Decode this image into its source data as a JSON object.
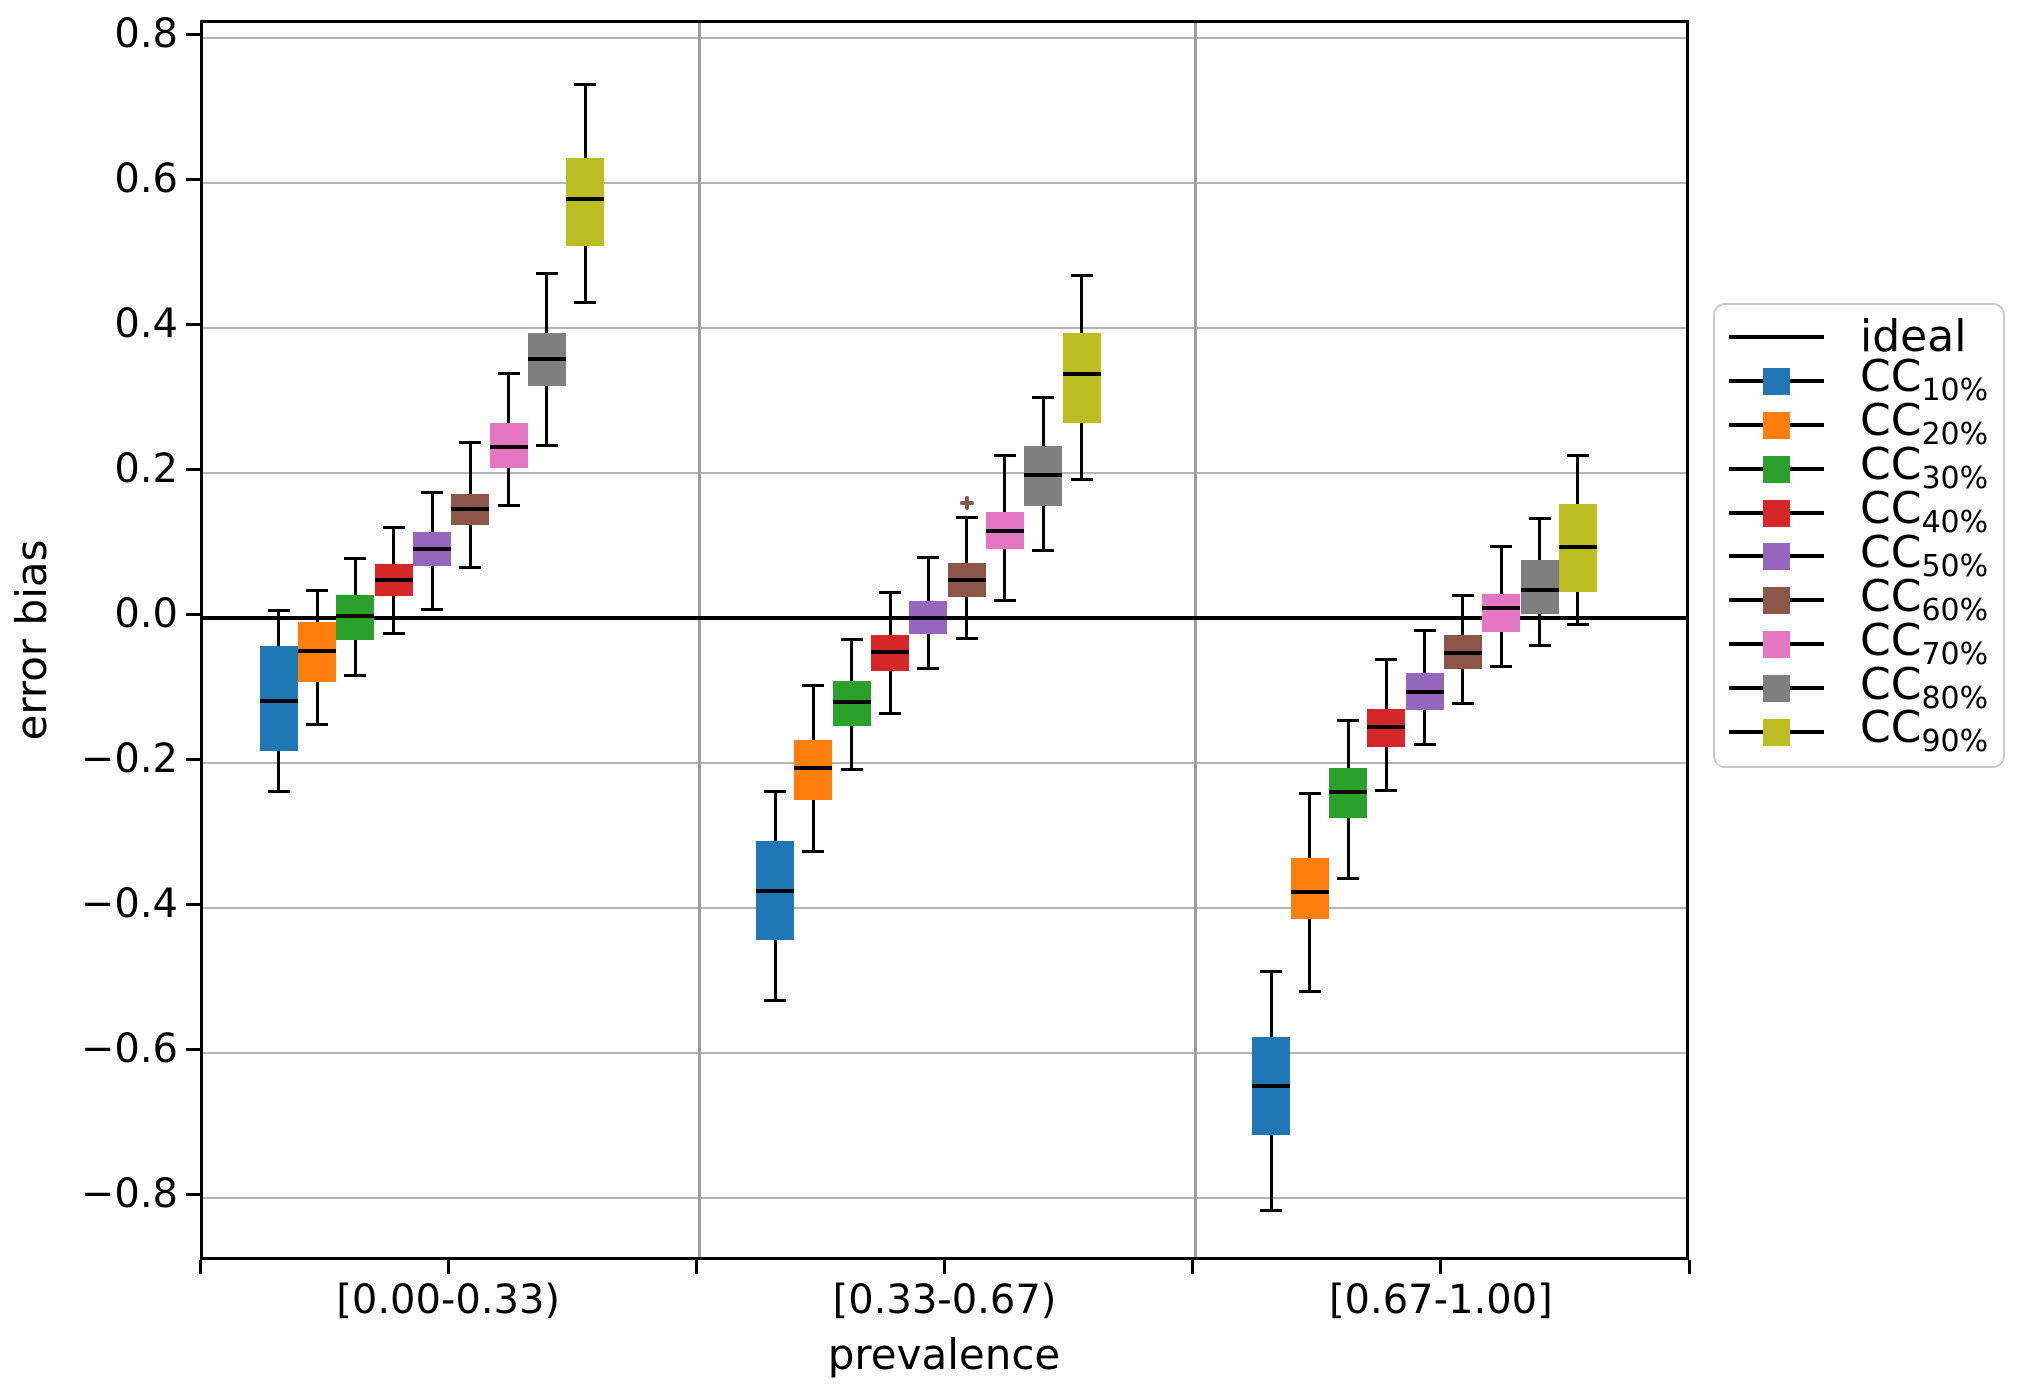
{
  "style": {
    "background": "#ffffff",
    "axis_color": "#000000",
    "grid_color": "#b4b4b4",
    "separator_color": "#9e9e9e",
    "ideal_color": "#000000",
    "flier_color": "#8c564b"
  },
  "legend": {
    "entries": [
      {
        "id": "ideal",
        "label": "ideal",
        "sub": "",
        "marker": "line",
        "color": "#000000"
      },
      {
        "id": "CC10",
        "label": "CC",
        "sub": "10%",
        "marker": "box",
        "color": "#1f77b4"
      },
      {
        "id": "CC20",
        "label": "CC",
        "sub": "20%",
        "marker": "box",
        "color": "#ff7f0e"
      },
      {
        "id": "CC30",
        "label": "CC",
        "sub": "30%",
        "marker": "box",
        "color": "#2ca02c"
      },
      {
        "id": "CC40",
        "label": "CC",
        "sub": "40%",
        "marker": "box",
        "color": "#d62728"
      },
      {
        "id": "CC50",
        "label": "CC",
        "sub": "50%",
        "marker": "box",
        "color": "#9467bd"
      },
      {
        "id": "CC60",
        "label": "CC",
        "sub": "60%",
        "marker": "box",
        "color": "#8c564b"
      },
      {
        "id": "CC70",
        "label": "CC",
        "sub": "70%",
        "marker": "box",
        "color": "#e377c2"
      },
      {
        "id": "CC80",
        "label": "CC",
        "sub": "80%",
        "marker": "box",
        "color": "#7f7f7f"
      },
      {
        "id": "CC90",
        "label": "CC",
        "sub": "90%",
        "marker": "box",
        "color": "#bcbd22"
      }
    ]
  },
  "chart_data": {
    "type": "box",
    "title": "",
    "xlabel": "prevalence",
    "ylabel": "error bias",
    "categories": [
      "[0.00-0.33)",
      "[0.33-0.67)",
      "[0.67-1.00]"
    ],
    "ylim": [
      -0.89,
      0.82
    ],
    "ideal_value": 0.0,
    "grid": true,
    "legend_position": "right",
    "y_ticks": [
      {
        "value": 0.8,
        "label": "0.8"
      },
      {
        "value": 0.6,
        "label": "0.6"
      },
      {
        "value": 0.4,
        "label": "0.4"
      },
      {
        "value": 0.2,
        "label": "0.2"
      },
      {
        "value": 0.0,
        "label": "0.0"
      },
      {
        "value": -0.2,
        "label": "−0.2"
      },
      {
        "value": -0.4,
        "label": "−0.4"
      },
      {
        "value": -0.6,
        "label": "−0.6"
      },
      {
        "value": -0.8,
        "label": "−0.8"
      }
    ],
    "series": [
      {
        "id": "CC10",
        "name": "CC_10%",
        "color": "#1f77b4",
        "groups": [
          {
            "whislo": -0.24,
            "q1": -0.184,
            "med": -0.115,
            "q3": -0.039,
            "whishi": 0.01
          },
          {
            "whislo": -0.528,
            "q1": -0.445,
            "med": -0.377,
            "q3": -0.308,
            "whishi": -0.24
          },
          {
            "whislo": -0.817,
            "q1": -0.713,
            "med": -0.646,
            "q3": -0.578,
            "whishi": -0.488
          }
        ]
      },
      {
        "id": "CC20",
        "name": "CC_20%",
        "color": "#ff7f0e",
        "groups": [
          {
            "whislo": -0.148,
            "q1": -0.089,
            "med": -0.046,
            "q3": -0.006,
            "whishi": 0.038
          },
          {
            "whislo": -0.323,
            "q1": -0.251,
            "med": -0.207,
            "q3": -0.169,
            "whishi": -0.094
          },
          {
            "whislo": -0.516,
            "q1": -0.416,
            "med": -0.378,
            "q3": -0.332,
            "whishi": -0.243
          }
        ]
      },
      {
        "id": "CC30",
        "name": "CC_30%",
        "color": "#2ca02c",
        "groups": [
          {
            "whislo": -0.08,
            "q1": -0.031,
            "med": 0.002,
            "q3": 0.031,
            "whishi": 0.082
          },
          {
            "whislo": -0.209,
            "q1": -0.149,
            "med": -0.117,
            "q3": -0.087,
            "whishi": -0.03
          },
          {
            "whislo": -0.36,
            "q1": -0.277,
            "med": -0.24,
            "q3": -0.208,
            "whishi": -0.142
          }
        ]
      },
      {
        "id": "CC40",
        "name": "CC_40%",
        "color": "#d62728",
        "groups": [
          {
            "whislo": -0.022,
            "q1": 0.03,
            "med": 0.052,
            "q3": 0.074,
            "whishi": 0.124
          },
          {
            "whislo": -0.132,
            "q1": -0.073,
            "med": -0.048,
            "q3": -0.024,
            "whishi": 0.035
          },
          {
            "whislo": -0.238,
            "q1": -0.178,
            "med": -0.151,
            "q3": -0.126,
            "whishi": -0.058
          }
        ]
      },
      {
        "id": "CC50",
        "name": "CC_50%",
        "color": "#9467bd",
        "groups": [
          {
            "whislo": 0.011,
            "q1": 0.071,
            "med": 0.095,
            "q3": 0.118,
            "whishi": 0.172
          },
          {
            "whislo": -0.07,
            "q1": -0.022,
            "med": 0.0,
            "q3": 0.023,
            "whishi": 0.083
          },
          {
            "whislo": -0.175,
            "q1": -0.128,
            "med": -0.103,
            "q3": -0.077,
            "whishi": -0.018
          }
        ]
      },
      {
        "id": "CC60",
        "name": "CC_60%",
        "color": "#8c564b",
        "fliers": [
          {
            "group": 1,
            "value": 0.158
          }
        ],
        "groups": [
          {
            "whislo": 0.069,
            "q1": 0.128,
            "med": 0.15,
            "q3": 0.171,
            "whishi": 0.242
          },
          {
            "whislo": -0.029,
            "q1": 0.029,
            "med": 0.052,
            "q3": 0.076,
            "whishi": 0.138
          },
          {
            "whislo": -0.118,
            "q1": -0.071,
            "med": -0.049,
            "q3": -0.024,
            "whishi": 0.03
          }
        ]
      },
      {
        "id": "CC70",
        "name": "CC_70%",
        "color": "#e377c2",
        "groups": [
          {
            "whislo": 0.154,
            "q1": 0.206,
            "med": 0.235,
            "q3": 0.268,
            "whishi": 0.336
          },
          {
            "whislo": 0.023,
            "q1": 0.095,
            "med": 0.12,
            "q3": 0.146,
            "whishi": 0.224
          },
          {
            "whislo": -0.068,
            "q1": -0.02,
            "med": 0.013,
            "q3": 0.032,
            "whishi": 0.098
          }
        ]
      },
      {
        "id": "CC80",
        "name": "CC_80%",
        "color": "#7f7f7f",
        "groups": [
          {
            "whislo": 0.238,
            "q1": 0.32,
            "med": 0.356,
            "q3": 0.392,
            "whishi": 0.474
          },
          {
            "whislo": 0.093,
            "q1": 0.154,
            "med": 0.197,
            "q3": 0.237,
            "whishi": 0.304
          },
          {
            "whislo": -0.038,
            "q1": 0.005,
            "med": 0.038,
            "q3": 0.079,
            "whishi": 0.137
          }
        ]
      },
      {
        "id": "CC90",
        "name": "CC_90%",
        "color": "#bcbd22",
        "groups": [
          {
            "whislo": 0.434,
            "q1": 0.513,
            "med": 0.577,
            "q3": 0.634,
            "whishi": 0.735
          },
          {
            "whislo": 0.191,
            "q1": 0.268,
            "med": 0.336,
            "q3": 0.393,
            "whishi": 0.472
          },
          {
            "whislo": -0.009,
            "q1": 0.035,
            "med": 0.098,
            "q3": 0.156,
            "whishi": 0.224
          }
        ]
      }
    ]
  }
}
